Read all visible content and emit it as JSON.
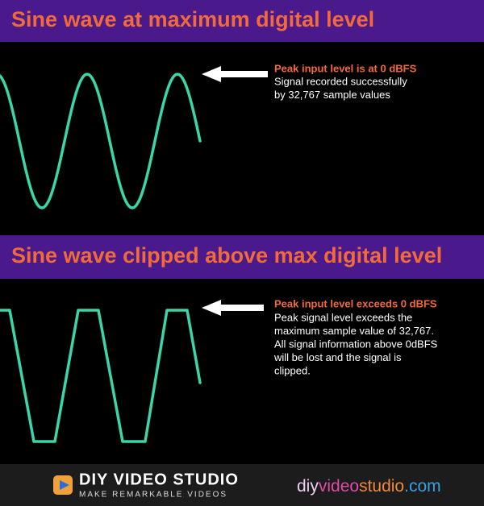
{
  "panels": [
    {
      "title": "Sine wave at maximum digital level",
      "heading": "Peak input level is at 0 dBFS",
      "lines": [
        "Signal recorded successfully",
        "by 32,767 sample values"
      ]
    },
    {
      "title": "Sine wave clipped above max digital level",
      "heading": "Peak input level exceeds 0 dBFS",
      "lines": [
        "Peak signal level exceeds the",
        "maximum sample value of 32,767.",
        "All signal information above 0dBFS",
        "will be lost and the signal is",
        "clipped."
      ]
    }
  ],
  "footer": {
    "brand": "DIY VIDEO STUDIO",
    "tagline": "MAKE REMARKABLE VIDEOS",
    "url_parts": [
      "diy",
      "video",
      "studio",
      ".com"
    ]
  }
}
